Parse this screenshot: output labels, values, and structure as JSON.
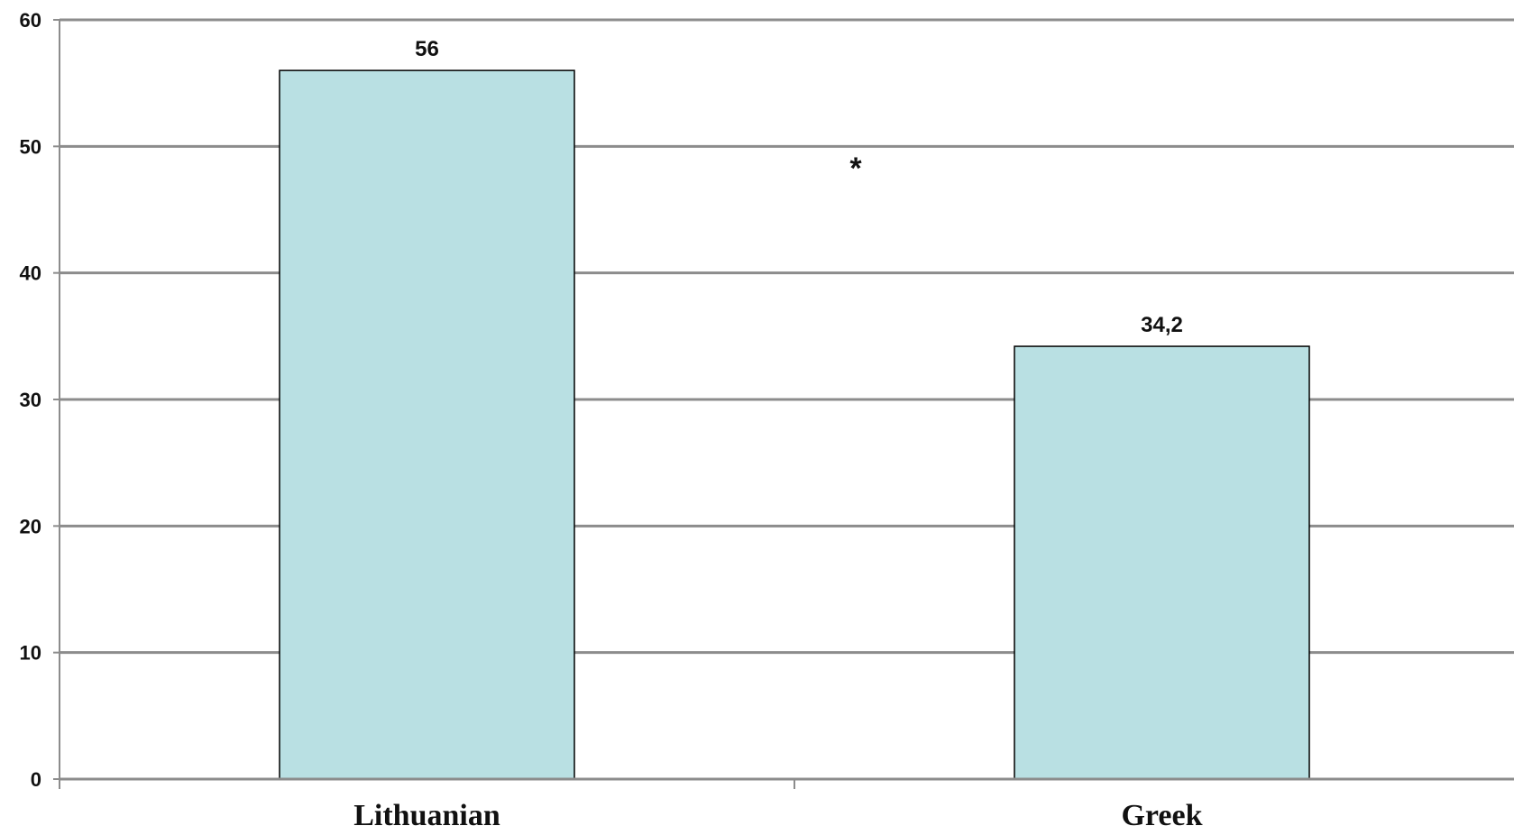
{
  "chart_data": {
    "type": "bar",
    "categories": [
      "Lithuanian",
      "Greek"
    ],
    "values": [
      56,
      34.2
    ],
    "data_labels": [
      "56",
      "34,2"
    ],
    "ylim": [
      0,
      60
    ],
    "y_ticks": [
      0,
      10,
      20,
      30,
      40,
      50,
      60
    ],
    "y_tick_labels": [
      "0",
      "10",
      "20",
      "30",
      "40",
      "50",
      "60"
    ],
    "grid": true,
    "legend": "none",
    "annotation": "*",
    "colors": {
      "bar_fill": "#b9e0e3",
      "bar_stroke": "#000000",
      "grid": "#8c8c8c",
      "axis": "#8c8c8c"
    }
  }
}
